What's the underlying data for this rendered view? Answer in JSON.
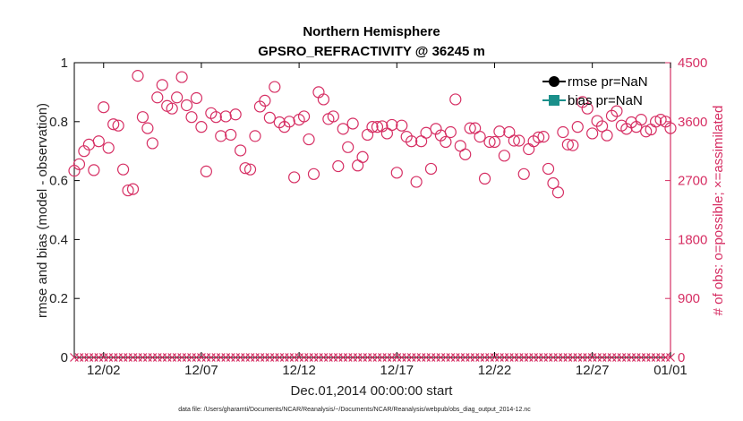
{
  "chart_data": {
    "type": "scatter",
    "title": "Northern Hemisphere",
    "subtitle": "GPSRO_REFRACTIVITY @ 36245 m",
    "xlabel": "Dec.01,2014 00:00:00 start",
    "ylabel": "rmse and bias (model - observation)",
    "y2label": "# of obs: o=possible; ×=assimilated",
    "footnote": "data file: /Users/gharamti/Documents/NCAR/Reanalysis/~/Documents/NCAR/Reanalysis/webpub/obs_diag_output_2014-12.nc",
    "xlim": [
      0.5,
      31.0
    ],
    "ylim": [
      0,
      1
    ],
    "y2lim": [
      0,
      4500
    ],
    "xticks": [
      {
        "x": 2,
        "label": "12/02"
      },
      {
        "x": 7,
        "label": "12/07"
      },
      {
        "x": 12,
        "label": "12/12"
      },
      {
        "x": 17,
        "label": "12/17"
      },
      {
        "x": 22,
        "label": "12/22"
      },
      {
        "x": 27,
        "label": "12/27"
      },
      {
        "x": 32,
        "label": "01/01"
      }
    ],
    "yticks": [
      "0",
      "0.2",
      "0.4",
      "0.6",
      "0.8",
      "1"
    ],
    "y2ticks": [
      "0",
      "900",
      "1800",
      "2700",
      "3600",
      "4500"
    ],
    "legend": {
      "position": "top-right",
      "entries": [
        {
          "label": "rmse pr=NaN",
          "color": "#000000",
          "marker": "circle"
        },
        {
          "label": "bias pr=NaN",
          "color": "#1a8f8a",
          "marker": "square"
        }
      ]
    },
    "series": [
      {
        "name": "possible",
        "axis": "right",
        "marker": "o",
        "color": "#d62e63",
        "x_start": 0.5,
        "x_step": 0.25,
        "values": [
          2850,
          2950,
          3150,
          3250,
          2860,
          3300,
          3820,
          3200,
          3560,
          3540,
          2870,
          2550,
          2570,
          4300,
          3670,
          3500,
          3270,
          3970,
          4160,
          3840,
          3800,
          3970,
          4280,
          3850,
          3670,
          3960,
          3520,
          2840,
          3730,
          3670,
          3380,
          3680,
          3400,
          3710,
          3160,
          2890,
          2870,
          3380,
          3830,
          3920,
          3660,
          4130,
          3590,
          3520,
          3600,
          2750,
          3630,
          3680,
          3330,
          2800,
          4050,
          3940,
          3640,
          3680,
          2920,
          3490,
          3210,
          3570,
          2930,
          3060,
          3400,
          3520,
          3520,
          3530,
          3420,
          3550,
          2820,
          3540,
          3370,
          3300,
          2680,
          3300,
          3430,
          2880,
          3490,
          3390,
          3290,
          3440,
          3940,
          3230,
          3100,
          3500,
          3500,
          3370,
          2730,
          3290,
          3290,
          3450,
          3080,
          3440,
          3310,
          3310,
          2800,
          3180,
          3300,
          3360,
          3370,
          2880,
          2660,
          2520,
          3440,
          3250,
          3240,
          3520,
          3900,
          3800,
          3420,
          3610,
          3530,
          3390,
          3690,
          3760,
          3540,
          3490,
          3590,
          3520,
          3630,
          3450,
          3480,
          3600,
          3630,
          3600,
          3500,
          3560
        ],
        "step_note": "one observation count per 6-hour analysis cycle"
      },
      {
        "name": "assimilated",
        "axis": "right",
        "marker": "x",
        "color": "#d62e63",
        "value_all": 0,
        "note": "all assimilated counts are 0"
      }
    ]
  }
}
